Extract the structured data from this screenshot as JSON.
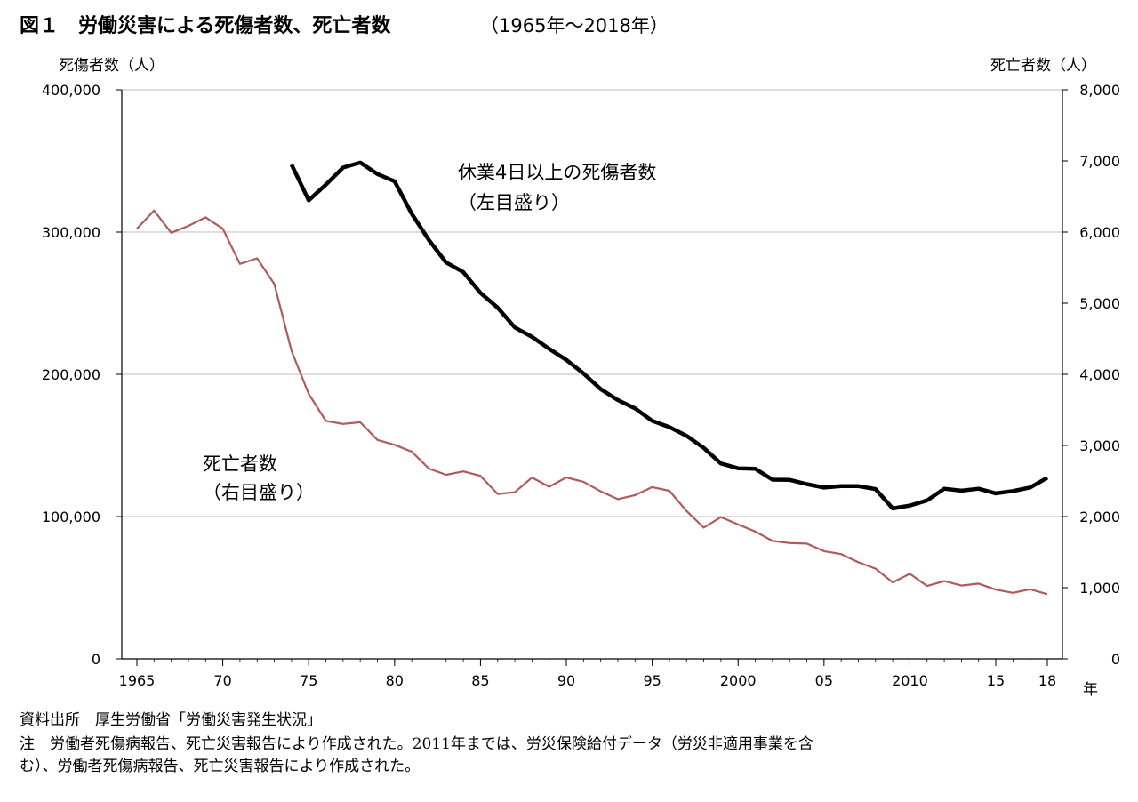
{
  "chart_data": {
    "type": "line",
    "title": "図１　労働災害による死傷者数、死亡者数",
    "title_years": "（1965年～2018年）",
    "y_left_label": "死傷者数（人）",
    "y_right_label": "死亡者数（人）",
    "x_unit_label": "年",
    "y_left_range": [
      0,
      400000
    ],
    "y_right_range": [
      0,
      8000
    ],
    "x_range": [
      1965,
      2018
    ],
    "y_left_ticks": [
      "0",
      "100,000",
      "200,000",
      "300,000",
      "400,000"
    ],
    "y_right_ticks": [
      "0",
      "1,000",
      "2,000",
      "3,000",
      "4,000",
      "5,000",
      "6,000",
      "7,000",
      "8,000"
    ],
    "x_ticks": [
      {
        "year": 1965,
        "label": "1965"
      },
      {
        "year": 1970,
        "label": "70"
      },
      {
        "year": 1975,
        "label": "75"
      },
      {
        "year": 1980,
        "label": "80"
      },
      {
        "year": 1985,
        "label": "85"
      },
      {
        "year": 1990,
        "label": "90"
      },
      {
        "year": 1995,
        "label": "95"
      },
      {
        "year": 2000,
        "label": "2000"
      },
      {
        "year": 2005,
        "label": "05"
      },
      {
        "year": 2010,
        "label": "2010"
      },
      {
        "year": 2015,
        "label": "15"
      },
      {
        "year": 2018,
        "label": "18"
      }
    ],
    "grid": "horizontal",
    "series": [
      {
        "name": "休業4日以上の死傷者数",
        "axis": "left",
        "color": "#000000",
        "annotation_line1": "休業4日以上の死傷者数",
        "annotation_line2": "（左目盛り）",
        "x": [
          1974,
          1975,
          1976,
          1977,
          1978,
          1979,
          1980,
          1981,
          1982,
          1983,
          1984,
          1985,
          1986,
          1987,
          1988,
          1989,
          1990,
          1991,
          1992,
          1993,
          1994,
          1995,
          1996,
          1997,
          1998,
          1999,
          2000,
          2001,
          2002,
          2003,
          2004,
          2005,
          2006,
          2007,
          2008,
          2009,
          2010,
          2011,
          2012,
          2013,
          2014,
          2015,
          2016,
          2017,
          2018
        ],
        "values": [
          347407,
          322322,
          333311,
          345293,
          348826,
          340731,
          335706,
          312844,
          294319,
          278623,
          271884,
          257240,
          246891,
          232953,
          226318,
          217964,
          210108,
          200633,
          189589,
          181900,
          176047,
          167316,
          162862,
          156726,
          148248,
          137316,
          133948,
          133598,
          125918,
          125750,
          122804,
          120354,
          121378,
          121356,
          119291,
          105718,
          107759,
          111349,
          119576,
          118157,
          119535,
          116311,
          117910,
          120460,
          127329
        ]
      },
      {
        "name": "死亡者数",
        "axis": "right",
        "color": "#b05a5a",
        "annotation_line1": "死亡者数",
        "annotation_line2": "（右目盛り）",
        "x": [
          1965,
          1966,
          1967,
          1968,
          1969,
          1970,
          1971,
          1972,
          1973,
          1974,
          1975,
          1976,
          1977,
          1978,
          1979,
          1980,
          1981,
          1982,
          1983,
          1984,
          1985,
          1986,
          1987,
          1988,
          1989,
          1990,
          1991,
          1992,
          1993,
          1994,
          1995,
          1996,
          1997,
          1998,
          1999,
          2000,
          2001,
          2002,
          2003,
          2004,
          2005,
          2006,
          2007,
          2008,
          2009,
          2010,
          2011,
          2012,
          2013,
          2014,
          2015,
          2016,
          2017,
          2018
        ],
        "values": [
          6046,
          6303,
          5990,
          6088,
          6208,
          6048,
          5552,
          5631,
          5269,
          4330,
          3725,
          3345,
          3302,
          3326,
          3077,
          3009,
          2912,
          2674,
          2588,
          2635,
          2572,
          2318,
          2342,
          2549,
          2419,
          2550,
          2489,
          2354,
          2245,
          2301,
          2414,
          2363,
          2078,
          1844,
          1992,
          1889,
          1790,
          1658,
          1628,
          1620,
          1514,
          1472,
          1357,
          1268,
          1075,
          1195,
          1024,
          1093,
          1030,
          1057,
          972,
          928,
          978,
          909
        ]
      }
    ]
  },
  "notes": {
    "source": "資料出所　厚生労働省「労働災害発生状況」",
    "note_line1": "注　労働者死傷病報告、死亡災害報告により作成された。2011年までは、労災保険給付データ（労災非適用事業を含",
    "note_line2": "む）、労働者死傷病報告、死亡災害報告により作成された。"
  }
}
